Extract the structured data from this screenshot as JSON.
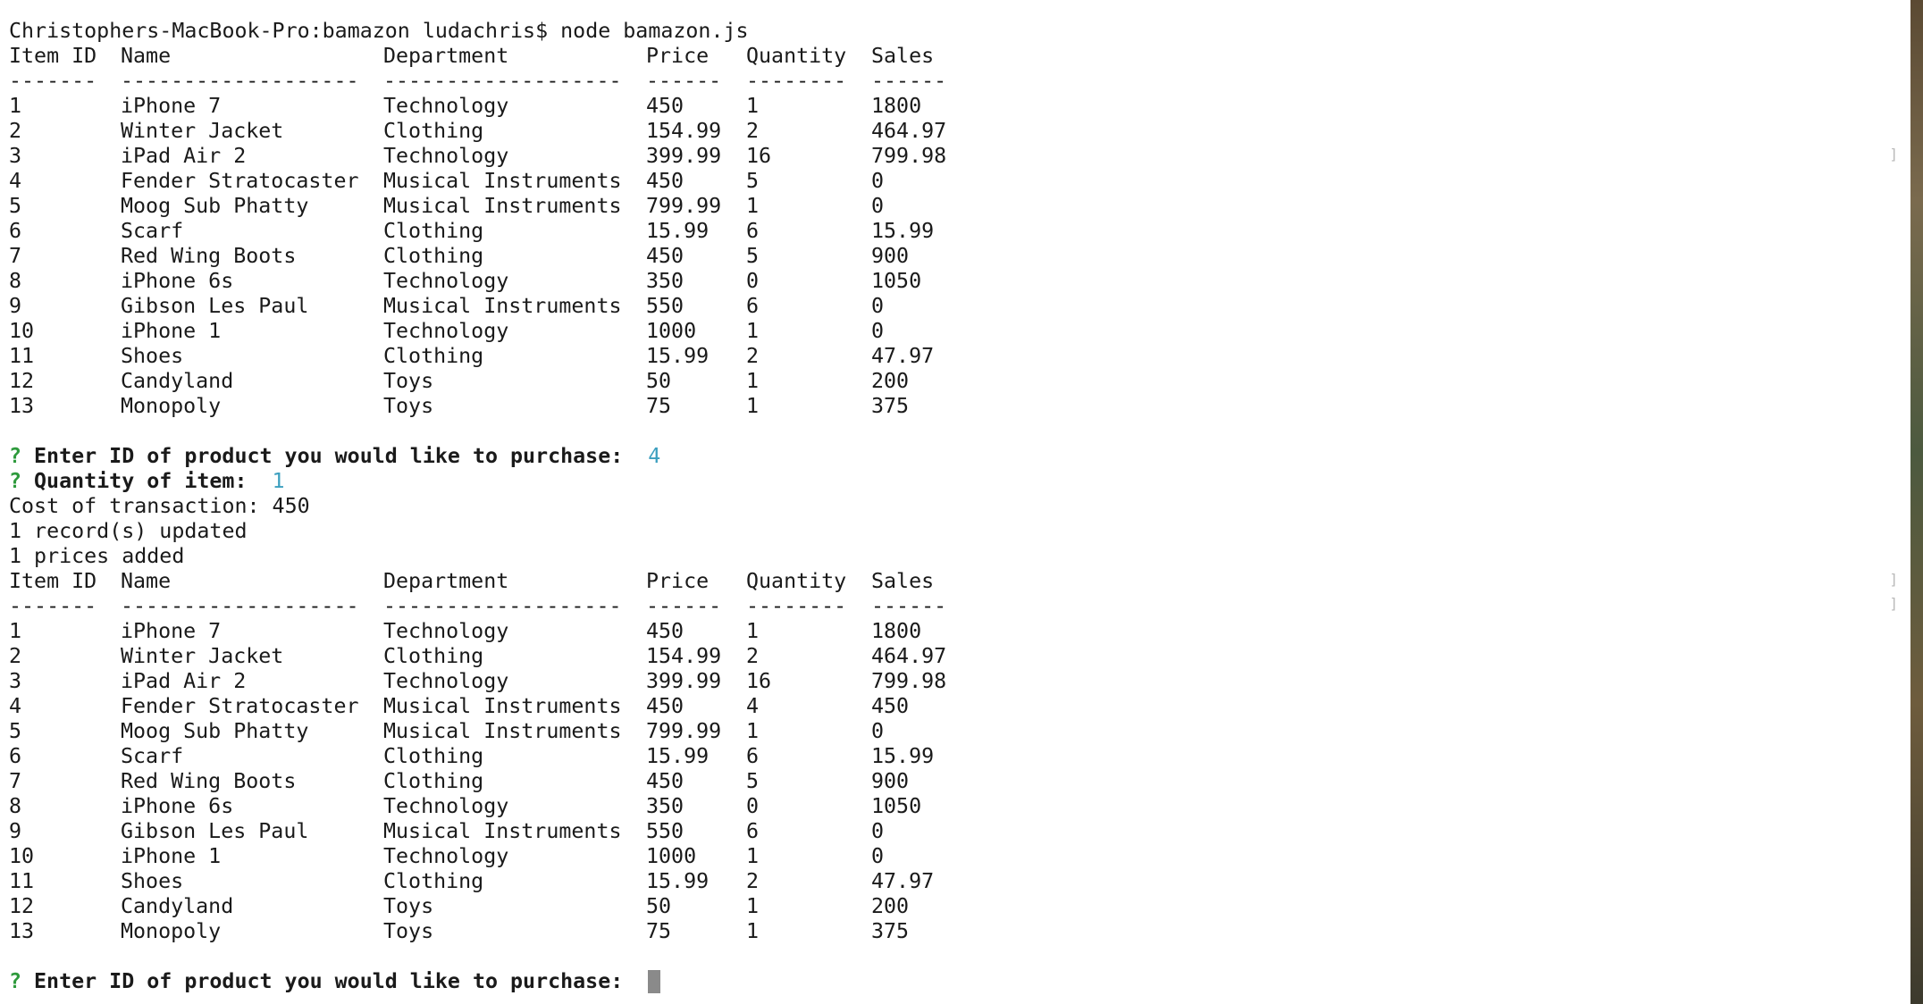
{
  "command_line": "Christophers-MacBook-Pro:bamazon ludachris$ node bamazon.js",
  "table_headers": [
    "Item ID",
    "Name",
    "Department",
    "Price",
    "Quantity",
    "Sales"
  ],
  "table_separators": [
    "-------",
    "-------------------",
    "-------------------",
    "------",
    "--------",
    "------"
  ],
  "table_before": [
    [
      "1",
      "iPhone 7",
      "Technology",
      "450",
      "1",
      "1800"
    ],
    [
      "2",
      "Winter Jacket",
      "Clothing",
      "154.99",
      "2",
      "464.97"
    ],
    [
      "3",
      "iPad Air 2",
      "Technology",
      "399.99",
      "16",
      "799.98"
    ],
    [
      "4",
      "Fender Stratocaster",
      "Musical Instruments",
      "450",
      "5",
      "0"
    ],
    [
      "5",
      "Moog Sub Phatty",
      "Musical Instruments",
      "799.99",
      "1",
      "0"
    ],
    [
      "6",
      "Scarf",
      "Clothing",
      "15.99",
      "6",
      "15.99"
    ],
    [
      "7",
      "Red Wing Boots",
      "Clothing",
      "450",
      "5",
      "900"
    ],
    [
      "8",
      "iPhone 6s",
      "Technology",
      "350",
      "0",
      "1050"
    ],
    [
      "9",
      "Gibson Les Paul",
      "Musical Instruments",
      "550",
      "6",
      "0"
    ],
    [
      "10",
      "iPhone 1",
      "Technology",
      "1000",
      "1",
      "0"
    ],
    [
      "11",
      "Shoes",
      "Clothing",
      "15.99",
      "2",
      "47.97"
    ],
    [
      "12",
      "Candyland",
      "Toys",
      "50",
      "1",
      "200"
    ],
    [
      "13",
      "Monopoly",
      "Toys",
      "75",
      "1",
      "375"
    ]
  ],
  "prompt_marker": "?",
  "prompt_id_label": "Enter ID of product you would like to purchase:",
  "prompt_id_answer": "4",
  "prompt_qty_label": "Quantity of item:",
  "prompt_qty_answer": "1",
  "output_cost": "Cost of transaction: 450",
  "output_updated": "1 record(s) updated",
  "output_prices": "1 prices added",
  "table_after": [
    [
      "1",
      "iPhone 7",
      "Technology",
      "450",
      "1",
      "1800"
    ],
    [
      "2",
      "Winter Jacket",
      "Clothing",
      "154.99",
      "2",
      "464.97"
    ],
    [
      "3",
      "iPad Air 2",
      "Technology",
      "399.99",
      "16",
      "799.98"
    ],
    [
      "4",
      "Fender Stratocaster",
      "Musical Instruments",
      "450",
      "4",
      "450"
    ],
    [
      "5",
      "Moog Sub Phatty",
      "Musical Instruments",
      "799.99",
      "1",
      "0"
    ],
    [
      "6",
      "Scarf",
      "Clothing",
      "15.99",
      "6",
      "15.99"
    ],
    [
      "7",
      "Red Wing Boots",
      "Clothing",
      "450",
      "5",
      "900"
    ],
    [
      "8",
      "iPhone 6s",
      "Technology",
      "350",
      "0",
      "1050"
    ],
    [
      "9",
      "Gibson Les Paul",
      "Musical Instruments",
      "550",
      "6",
      "0"
    ],
    [
      "10",
      "iPhone 1",
      "Technology",
      "1000",
      "1",
      "0"
    ],
    [
      "11",
      "Shoes",
      "Clothing",
      "15.99",
      "2",
      "47.97"
    ],
    [
      "12",
      "Candyland",
      "Toys",
      "50",
      "1",
      "200"
    ],
    [
      "13",
      "Monopoly",
      "Toys",
      "75",
      "1",
      "375"
    ]
  ],
  "prompt_final_label": "Enter ID of product you would like to purchase:",
  "colors": {
    "prompt_marker": "#2e9a3c",
    "answer": "#3c9fbf",
    "cursor": "#8a8a8a",
    "background": "#ffffff",
    "text": "#1a1a1a"
  }
}
